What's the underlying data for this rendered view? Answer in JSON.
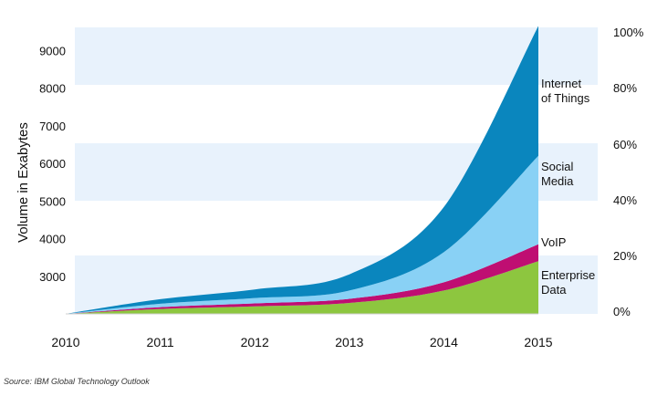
{
  "chart_data": {
    "type": "area",
    "stacked": true,
    "title": "",
    "ylabel": "Volume in Exabytes",
    "x": [
      2010,
      2011,
      2012,
      2013,
      2014,
      2015
    ],
    "x_tick_labels": [
      "2010",
      "2011",
      "2012",
      "2013",
      "2014",
      "2015"
    ],
    "y_ticks": [
      3000,
      4000,
      5000,
      6000,
      7000,
      8000,
      9000
    ],
    "y_tick_labels": [
      "3000",
      "4000",
      "5000",
      "6000",
      "7000",
      "8000",
      "9000"
    ],
    "ylim": [
      2000,
      9700
    ],
    "right_axis_ticks": [
      "0%",
      "20%",
      "40%",
      "60%",
      "80%",
      "100%"
    ],
    "grid": "alternating horizontal bands",
    "series": [
      {
        "name": "Enterprise Data",
        "label_lines": [
          "Enterprise",
          "Data"
        ],
        "color": "#8dc63f",
        "values": [
          0,
          130,
          200,
          290,
          620,
          1400
        ]
      },
      {
        "name": "VoIP",
        "label_lines": [
          "VoIP"
        ],
        "color": "#bf0e72",
        "values": [
          0,
          50,
          80,
          110,
          220,
          450
        ]
      },
      {
        "name": "Social Media",
        "label_lines": [
          "Social",
          "Media"
        ],
        "color": "#89d1f5",
        "values": [
          0,
          90,
          140,
          220,
          800,
          2350
        ]
      },
      {
        "name": "Internet of Things",
        "label_lines": [
          "Internet",
          "of Things"
        ],
        "color": "#0a86be",
        "values": [
          0,
          120,
          230,
          430,
          1200,
          3450
        ]
      }
    ]
  },
  "footer": {
    "source": "Source: IBM Global Technology Outlook"
  }
}
